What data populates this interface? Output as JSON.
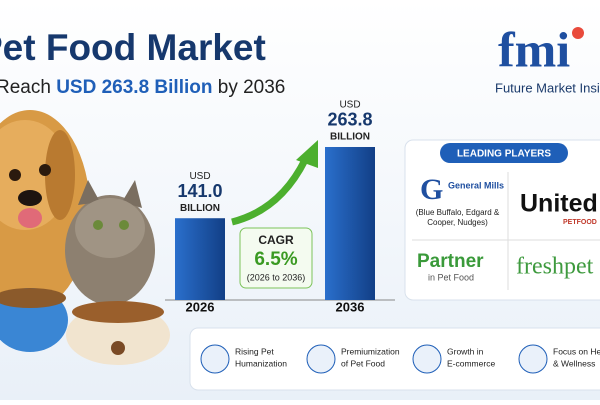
{
  "header": {
    "title": "Pet Food Market",
    "subtitle_lead": "Reach",
    "subtitle_highlight": "USD 263.8 Billion",
    "subtitle_tail": "by 2036"
  },
  "logo": {
    "mark": "fmi",
    "text": "Future Market Insi"
  },
  "chart_data": {
    "type": "bar",
    "categories": [
      "2026",
      "2036"
    ],
    "values": [
      141.0,
      263.8
    ],
    "value_labels": [
      "141.0",
      "263.8"
    ],
    "unit_prefix": "USD",
    "unit_suffix": "BILLION",
    "color": "#1f5fb8"
  },
  "cagr": {
    "label": "CAGR",
    "value": "6.5%",
    "period": "(2026 to 2036)"
  },
  "players": {
    "heading": "LEADING PLAYERS",
    "items": [
      {
        "name": "General Mills",
        "note": "(Blue Buffalo, Edgard & Cooper, Nudges)"
      },
      {
        "name": "United",
        "sub": "PETFOOD"
      },
      {
        "name": "Partner",
        "sub": "in Pet Food"
      },
      {
        "name": "freshpet"
      }
    ]
  },
  "drivers": [
    {
      "line1": "Rising Pet",
      "line2": "Humanization"
    },
    {
      "line1": "Premiumization",
      "line2": "of Pet Food"
    },
    {
      "line1": "Growth in",
      "line2": "E-commerce"
    },
    {
      "line1": "Focus on He",
      "line2": "& Wellness"
    }
  ]
}
